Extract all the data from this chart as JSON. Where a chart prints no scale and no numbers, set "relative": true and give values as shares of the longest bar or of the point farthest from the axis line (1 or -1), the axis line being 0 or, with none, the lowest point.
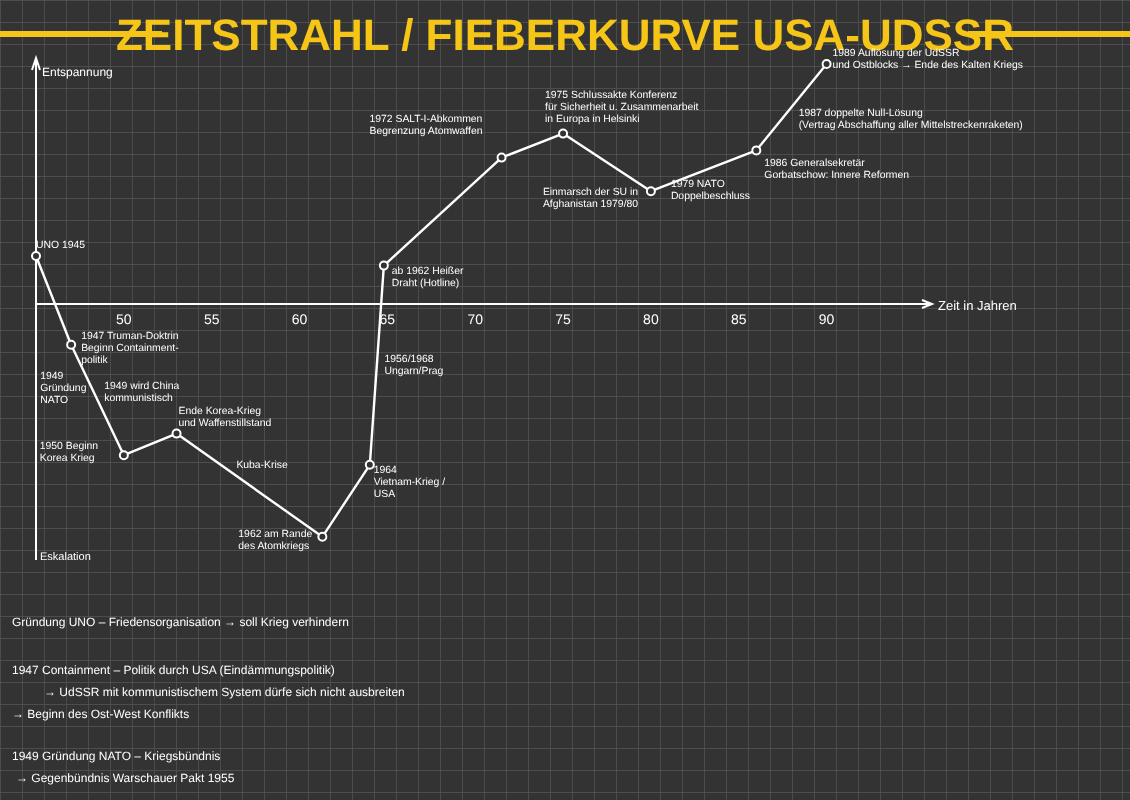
{
  "chart_data": {
    "type": "line",
    "title": "ZEITSTRAHL / FIEBERKURVE USA-UDSSR",
    "xlabel": "Zeit in Jahren",
    "ylabel": "Entspannung",
    "relative": true,
    "x": [
      45,
      47,
      50,
      53,
      61.3,
      64,
      64.8,
      71.5,
      75,
      80,
      86,
      90
    ],
    "series": [
      {
        "color": "#ffffff",
        "values": [
          0.2,
          -0.17,
          -0.63,
          -0.54,
          -0.97,
          -0.67,
          0.16,
          0.61,
          0.71,
          0.47,
          0.64,
          1
        ]
      }
    ],
    "xlim": [
      45,
      96
    ],
    "xticks": [
      50,
      55,
      60,
      65,
      70,
      75,
      80,
      85,
      90
    ],
    "marker": "circle",
    "annotations": [
      {
        "text": "UNO 1945",
        "x": 45,
        "y": 0.2
      },
      {
        "text": "1947 Truman-Doktrin\nBeginn Containment-\npolitik",
        "x": 47,
        "y": -0.17
      },
      {
        "text": "1949\nGründung\nNATO",
        "x": 49,
        "y": -0.48
      },
      {
        "text": "1949 wird China\nkommunistisch",
        "x": 49,
        "y": -0.48
      },
      {
        "text": "1950 Beginn\nKorea Krieg",
        "x": 50,
        "y": -0.63
      },
      {
        "text": "Ende Korea-Krieg\nund Waffenstillstand",
        "x": 53,
        "y": -0.54
      },
      {
        "text": "Kuba-Krise",
        "x": 58,
        "y": -0.8
      },
      {
        "text": "1962 am Rande\ndes Atomkriegs",
        "x": 61.3,
        "y": -0.97
      },
      {
        "text": "1964\nVietnam-Krieg /\nUSA",
        "x": 64,
        "y": -0.67
      },
      {
        "text": "1956/1968\nUngarn/Prag",
        "x": 64.5,
        "y": -0.2
      },
      {
        "text": "ab 1962 Heißer\nDraht (Hotline)",
        "x": 64.8,
        "y": 0.16
      },
      {
        "text": "1972 SALT-I-Abkommen\nBegrenzung Atomwaffen",
        "x": 71.5,
        "y": 0.61
      },
      {
        "text": "1975 Schlussakte Konferenz\nfür Sicherheit u. Zusammenarbeit\nin Europa in Helsinki",
        "x": 75,
        "y": 0.71
      },
      {
        "text": "Einmarsch der SU in\nAfghanistan 1979/80",
        "x": 80,
        "y": 0.47
      },
      {
        "text": "1979 NATO\nDoppelbeschluss",
        "x": 80,
        "y": 0.47
      },
      {
        "text": "1986 Generalsekretär\nGorbatschow: Innere Reformen",
        "x": 86,
        "y": 0.64
      },
      {
        "text": "1987 doppelte Null-Lösung\n(Vertrag Abschaffung aller Mittelstreckenraketen)",
        "x": 87.5,
        "y": 0.8
      },
      {
        "text": "1989 Auflösung der UdSSR\nund Ostblocks → Ende des Kalten Kriegs",
        "x": 90,
        "y": 1
      },
      "Eskalation",
      "Gründung UNO – Friedensorganisation → soll Krieg verhindern",
      "1947 Containment – Politik durch USA (Eindämmungspolitik)",
      "→ UdSSR mit kommunistischem System dürfe sich nicht ausbreiten",
      "→ Beginn des Ost-West Konflikts",
      "1949 Gründung NATO – Kriegsbündnis",
      "→ Gegenbündnis Warschauer Pakt 1955"
    ]
  }
}
